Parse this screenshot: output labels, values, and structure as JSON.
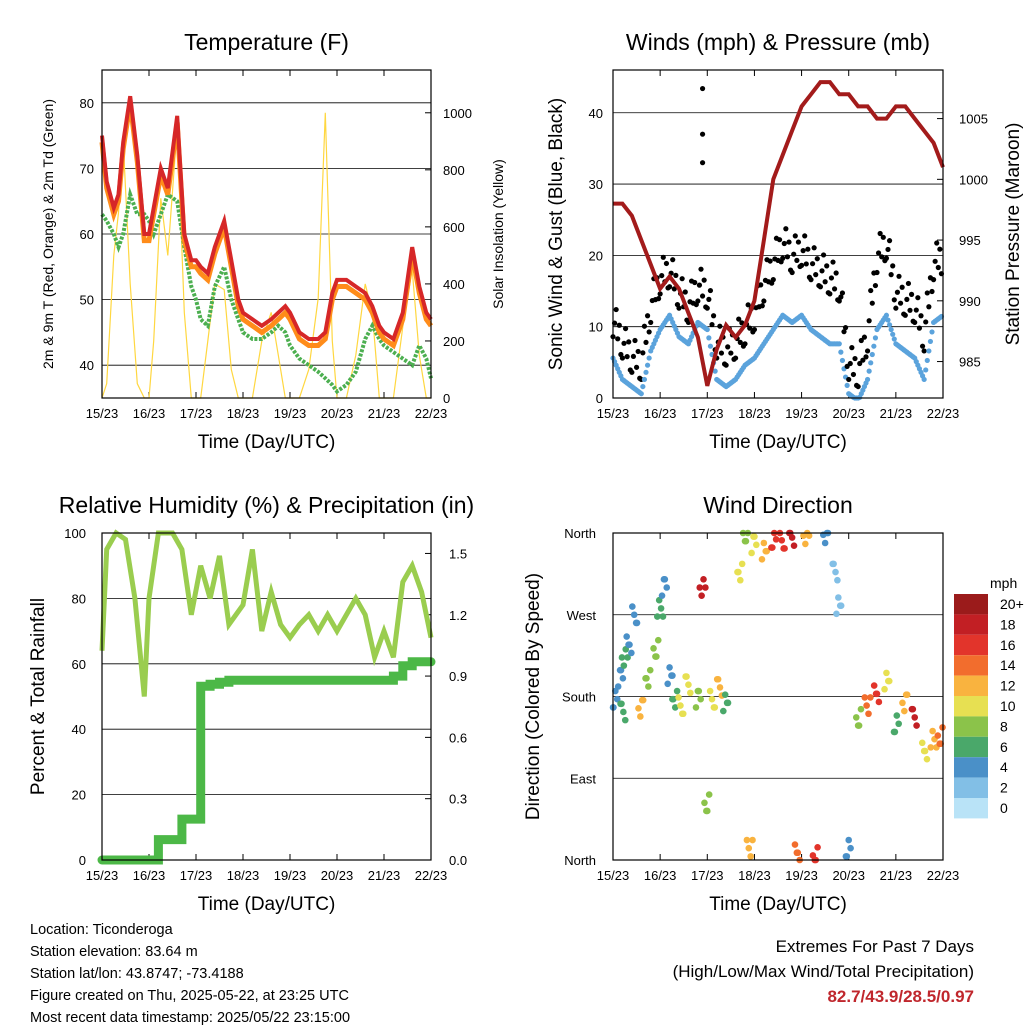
{
  "colors": {
    "temp2m": "#d62728",
    "temp9m": "#ff8c1a",
    "dewpoint": "#4caf50",
    "solar": "#ffd740",
    "wind": "#5ba3dc",
    "gust": "#000000",
    "pressure": "#a31b1b",
    "rh": "#9acd4f",
    "precip": "#4cb847",
    "extremes": "#c0272d"
  },
  "time_axis": {
    "ticks": [
      "15/23",
      "16/23",
      "17/23",
      "18/23",
      "19/23",
      "20/23",
      "21/23",
      "22/23"
    ],
    "label": "Time (Day/UTC)"
  },
  "chart_data": [
    {
      "id": "temperature",
      "type": "line",
      "title": "Temperature (F)",
      "xlabel": "Time (Day/UTC)",
      "ylabel": "2m & 9m T (Red, Orange) & 2m Td (Green)",
      "ylabel_right": "Solar Insolation (Yellow)",
      "ylim": [
        35,
        85
      ],
      "ylim_right": [
        0,
        1150
      ],
      "yticks": [
        40,
        50,
        60,
        70,
        80
      ],
      "yticks_right": [
        0,
        200,
        400,
        600,
        800,
        1000
      ],
      "grid": true,
      "x": [
        0,
        0.1,
        0.25,
        0.35,
        0.45,
        0.6,
        0.75,
        0.9,
        1.0,
        1.1,
        1.25,
        1.4,
        1.6,
        1.75,
        1.9,
        2.0,
        2.1,
        2.25,
        2.4,
        2.6,
        2.75,
        2.9,
        3.0,
        3.2,
        3.4,
        3.6,
        3.75,
        3.9,
        4.0,
        4.2,
        4.4,
        4.6,
        4.75,
        4.9,
        5.0,
        5.2,
        5.4,
        5.6,
        5.75,
        5.9,
        6.0,
        6.2,
        6.4,
        6.6,
        6.75,
        6.9,
        7.0
      ],
      "series": [
        {
          "key": "temp2m",
          "values": [
            75,
            68,
            64,
            66,
            74,
            81,
            72,
            60,
            60,
            64,
            70,
            67,
            78,
            60,
            56,
            56,
            55,
            54,
            58,
            62,
            56,
            50,
            48,
            47,
            46,
            47,
            48,
            49,
            48,
            45,
            44,
            44,
            45,
            51,
            53,
            53,
            52,
            51,
            49,
            46,
            45,
            44,
            48,
            58,
            52,
            48,
            47
          ]
        },
        {
          "key": "temp9m",
          "values": [
            74,
            67,
            63,
            65,
            73,
            80,
            71,
            59,
            59,
            63,
            69,
            66,
            77,
            59,
            55,
            55,
            54,
            53,
            57,
            61,
            55,
            49,
            47,
            46,
            45,
            46,
            47,
            48,
            47,
            44,
            43,
            43,
            44,
            50,
            52,
            52,
            51,
            50,
            48,
            45,
            44,
            43,
            47,
            57,
            51,
            47,
            46
          ]
        },
        {
          "key": "dewpoint",
          "values": [
            63,
            62,
            60,
            58,
            60,
            66,
            63,
            63,
            62,
            60,
            63,
            66,
            65,
            58,
            52,
            50,
            47,
            46,
            52,
            55,
            50,
            47,
            45,
            44,
            44,
            45,
            46,
            45,
            43,
            41,
            40,
            39,
            38,
            37,
            36,
            37,
            39,
            44,
            46,
            44,
            43,
            42,
            41,
            40,
            43,
            41,
            38
          ]
        },
        {
          "key": "solar",
          "values": [
            0,
            50,
            500,
            650,
            900,
            400,
            50,
            0,
            0,
            200,
            700,
            500,
            950,
            300,
            0,
            0,
            0,
            200,
            400,
            380,
            100,
            0,
            0,
            0,
            200,
            300,
            150,
            0,
            0,
            0,
            100,
            350,
            1000,
            200,
            0,
            0,
            150,
            400,
            300,
            0,
            0,
            0,
            250,
            450,
            150,
            0,
            0
          ]
        }
      ]
    },
    {
      "id": "winds",
      "type": "scatter",
      "title": "Winds (mph) & Pressure (mb)",
      "xlabel": "Time (Day/UTC)",
      "ylabel": "Sonic Wind & Gust (Blue, Black)",
      "ylabel_right": "Station Pressure (Maroon)",
      "ylim": [
        0,
        46
      ],
      "ylim_right": [
        982,
        1009
      ],
      "yticks": [
        0,
        10,
        20,
        30,
        40
      ],
      "yticks_right": [
        985,
        990,
        995,
        1000,
        1005
      ],
      "grid": true,
      "x": [
        0,
        0.2,
        0.4,
        0.6,
        0.8,
        1.0,
        1.2,
        1.4,
        1.6,
        1.8,
        2.0,
        2.2,
        2.4,
        2.6,
        2.8,
        3.0,
        3.2,
        3.4,
        3.6,
        3.8,
        4.0,
        4.2,
        4.4,
        4.6,
        4.8,
        5.0,
        5.2,
        5.4,
        5.6,
        5.8,
        6.0,
        6.2,
        6.4,
        6.6,
        6.8,
        7.0
      ],
      "series": [
        {
          "key": "wind",
          "values": [
            8,
            5,
            4,
            3,
            9,
            12,
            14,
            11,
            10,
            13,
            12,
            5,
            4,
            5,
            7,
            8,
            10,
            12,
            14,
            13,
            14,
            12,
            11,
            10,
            10,
            3,
            2,
            5,
            12,
            14,
            10,
            9,
            8,
            5,
            13,
            14
          ]
        },
        {
          "key": "gust",
          "values": [
            11,
            8,
            6,
            5,
            13,
            17,
            18,
            15,
            13,
            16,
            15,
            8,
            7,
            8,
            10,
            12,
            16,
            19,
            22,
            20,
            21,
            19,
            18,
            17,
            16,
            5,
            4,
            9,
            20,
            22,
            15,
            14,
            13,
            9,
            19,
            20
          ]
        },
        {
          "key": "pressure",
          "values": [
            998,
            998,
            997,
            995,
            993,
            991,
            992,
            991,
            989,
            987,
            983,
            986,
            988,
            987,
            988,
            990,
            995,
            1000,
            1002,
            1004,
            1006,
            1007,
            1008,
            1008,
            1007,
            1007,
            1006,
            1006,
            1005,
            1005,
            1006,
            1006,
            1005,
            1004,
            1003,
            1001
          ]
        }
      ],
      "gust_outliers": [
        {
          "x": 1.9,
          "y": 43.4
        },
        {
          "x": 1.9,
          "y": 37
        },
        {
          "x": 1.9,
          "y": 33
        }
      ]
    },
    {
      "id": "humidity",
      "type": "line",
      "title": "Relative Humidity (%) & Precipitation (in)",
      "xlabel": "Time (Day/UTC)",
      "ylabel": "Percent & Total Rainfall",
      "ylim": [
        0,
        100
      ],
      "ylim_right": [
        0,
        1.6
      ],
      "yticks": [
        0,
        20,
        40,
        60,
        80,
        100
      ],
      "yticks_right": [
        "0.0",
        "0.3",
        "0.6",
        "0.9",
        "1.2",
        "1.5"
      ],
      "grid": true,
      "x": [
        0,
        0.1,
        0.3,
        0.5,
        0.7,
        0.9,
        1.0,
        1.2,
        1.5,
        1.7,
        1.9,
        2.1,
        2.3,
        2.5,
        2.7,
        3.0,
        3.2,
        3.4,
        3.6,
        3.8,
        4.0,
        4.2,
        4.4,
        4.6,
        4.8,
        5.0,
        5.2,
        5.4,
        5.6,
        5.8,
        6.0,
        6.2,
        6.4,
        6.6,
        6.8,
        7.0
      ],
      "series": [
        {
          "key": "rh",
          "values": [
            64,
            95,
            100,
            98,
            80,
            50,
            80,
            100,
            100,
            95,
            75,
            90,
            80,
            93,
            72,
            78,
            95,
            70,
            82,
            72,
            68,
            72,
            75,
            70,
            75,
            70,
            75,
            80,
            75,
            62,
            70,
            62,
            85,
            90,
            82,
            68
          ]
        },
        {
          "key": "precip",
          "values": [
            0,
            0,
            0,
            0,
            0,
            0,
            0,
            0.1,
            0.1,
            0.2,
            0.2,
            0.85,
            0.86,
            0.87,
            0.88,
            0.88,
            0.88,
            0.88,
            0.88,
            0.88,
            0.88,
            0.88,
            0.88,
            0.88,
            0.88,
            0.88,
            0.88,
            0.88,
            0.88,
            0.88,
            0.88,
            0.9,
            0.95,
            0.97,
            0.97,
            0.97
          ]
        }
      ]
    },
    {
      "id": "wind_direction",
      "type": "scatter",
      "title": "Wind Direction",
      "xlabel": "Time (Day/UTC)",
      "ylabel": "Direction (Colored By Speed)",
      "y_categories": [
        "North",
        "East",
        "South",
        "West",
        "North"
      ],
      "ylim": [
        0,
        360
      ],
      "grid": true,
      "colorbar": {
        "title": "mph",
        "labels": [
          "0",
          "2",
          "4",
          "6",
          "8",
          "10",
          "12",
          "14",
          "16",
          "18",
          "20+"
        ],
        "colors": [
          "#b9e3f7",
          "#82bfe6",
          "#4a90c8",
          "#4aa86a",
          "#8bc34a",
          "#e7e052",
          "#f9b33f",
          "#f26d2d",
          "#e2342b",
          "#c21f24",
          "#9b1b1b"
        ]
      },
      "points": [
        {
          "x": 0.05,
          "y": 180,
          "s": 4
        },
        {
          "x": 0.15,
          "y": 200,
          "s": 3
        },
        {
          "x": 0.25,
          "y": 220,
          "s": 5
        },
        {
          "x": 0.35,
          "y": 240,
          "s": 4
        },
        {
          "x": 0.45,
          "y": 270,
          "s": 3
        },
        {
          "x": 0.2,
          "y": 160,
          "s": 6
        },
        {
          "x": 0.6,
          "y": 170,
          "s": 11
        },
        {
          "x": 0.75,
          "y": 200,
          "s": 8
        },
        {
          "x": 0.9,
          "y": 230,
          "s": 7
        },
        {
          "x": 1.0,
          "y": 280,
          "s": 5
        },
        {
          "x": 1.1,
          "y": 300,
          "s": 4
        },
        {
          "x": 1.2,
          "y": 200,
          "s": 3
        },
        {
          "x": 1.3,
          "y": 180,
          "s": 6
        },
        {
          "x": 1.45,
          "y": 170,
          "s": 9
        },
        {
          "x": 1.6,
          "y": 190,
          "s": 10
        },
        {
          "x": 1.8,
          "y": 180,
          "s": 8
        },
        {
          "x": 1.9,
          "y": 300,
          "s": 18
        },
        {
          "x": 2.0,
          "y": 60,
          "s": 7
        },
        {
          "x": 2.1,
          "y": 180,
          "s": 9
        },
        {
          "x": 2.25,
          "y": 190,
          "s": 11
        },
        {
          "x": 2.4,
          "y": 170,
          "s": 6
        },
        {
          "x": 2.7,
          "y": 320,
          "s": 10
        },
        {
          "x": 2.8,
          "y": 360,
          "s": 8
        },
        {
          "x": 2.9,
          "y": 10,
          "s": 12
        },
        {
          "x": 3.0,
          "y": 350,
          "s": 9
        },
        {
          "x": 3.2,
          "y": 340,
          "s": 12
        },
        {
          "x": 3.4,
          "y": 350,
          "s": 15
        },
        {
          "x": 3.6,
          "y": 355,
          "s": 16
        },
        {
          "x": 3.8,
          "y": 355,
          "s": 18
        },
        {
          "x": 3.9,
          "y": 5,
          "s": 14
        },
        {
          "x": 4.1,
          "y": 360,
          "s": 12
        },
        {
          "x": 4.3,
          "y": 5,
          "s": 16
        },
        {
          "x": 4.5,
          "y": 355,
          "s": 4
        },
        {
          "x": 4.7,
          "y": 320,
          "s": 2
        },
        {
          "x": 4.8,
          "y": 280,
          "s": 1
        },
        {
          "x": 5.0,
          "y": 10,
          "s": 4
        },
        {
          "x": 5.2,
          "y": 160,
          "s": 8
        },
        {
          "x": 5.4,
          "y": 170,
          "s": 14
        },
        {
          "x": 5.6,
          "y": 180,
          "s": 16
        },
        {
          "x": 5.8,
          "y": 200,
          "s": 9
        },
        {
          "x": 6.0,
          "y": 150,
          "s": 6
        },
        {
          "x": 6.2,
          "y": 170,
          "s": 12
        },
        {
          "x": 6.4,
          "y": 160,
          "s": 18
        },
        {
          "x": 6.6,
          "y": 120,
          "s": 10
        },
        {
          "x": 6.8,
          "y": 130,
          "s": 12
        },
        {
          "x": 6.95,
          "y": 140,
          "s": 13
        }
      ]
    }
  ],
  "info": {
    "location": "Location: Ticonderoga",
    "elevation": "Station elevation: 83.64 m",
    "latlon": "Station lat/lon: 43.8747; -73.4188",
    "created": "Figure created on Thu, 2025-05-22, at 23:25 UTC",
    "timestamp": "Most recent data timestamp: 2025/05/22 23:15:00"
  },
  "extremes": {
    "title": "Extremes For Past 7 Days",
    "subtitle": "(High/Low/Max Wind/Total Precipitation)",
    "values": "82.7/43.9/28.5/0.97"
  }
}
